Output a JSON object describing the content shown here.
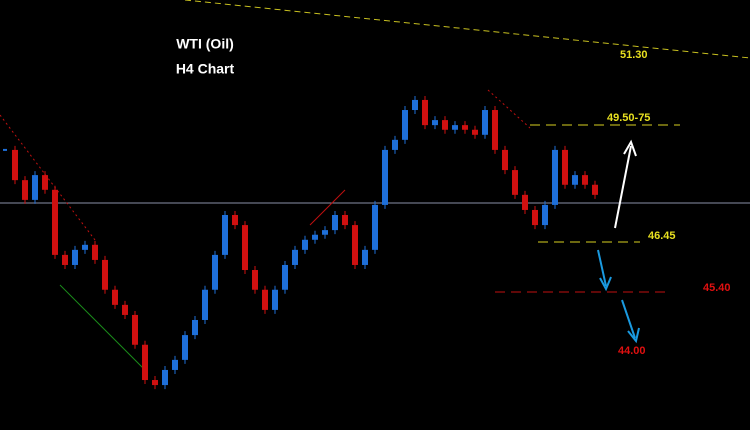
{
  "chart_data": {
    "type": "candlestick",
    "title": "WTI (Oil)",
    "subtitle": "H4 Chart",
    "values": [
      48.62,
      47.9,
      47.43,
      48.02,
      47.67,
      46.12,
      45.88,
      46.24,
      46.36,
      46.0,
      45.29,
      44.93,
      44.69,
      43.98,
      43.14,
      43.02,
      43.38,
      43.62,
      44.21,
      44.57,
      45.29,
      46.12,
      47.07,
      46.83,
      45.76,
      45.29,
      44.81,
      45.29,
      45.88,
      46.24,
      46.48,
      46.6,
      46.71,
      47.07,
      46.83,
      45.88,
      46.24,
      47.31,
      48.62,
      48.86,
      49.57,
      49.81,
      49.21,
      49.33,
      49.1,
      49.21,
      49.1,
      48.98,
      49.57,
      48.62,
      48.14,
      47.55,
      47.19,
      46.83,
      47.31,
      48.62,
      47.79,
      48.02,
      47.79,
      47.55
    ],
    "up_color": "#1e6fd9",
    "down_color": "#d01010",
    "ylim": [
      41.95,
      52.19
    ],
    "annotations": [
      "51.30",
      "49.50-75",
      "46.45",
      "45.40",
      "44.00"
    ]
  }
}
